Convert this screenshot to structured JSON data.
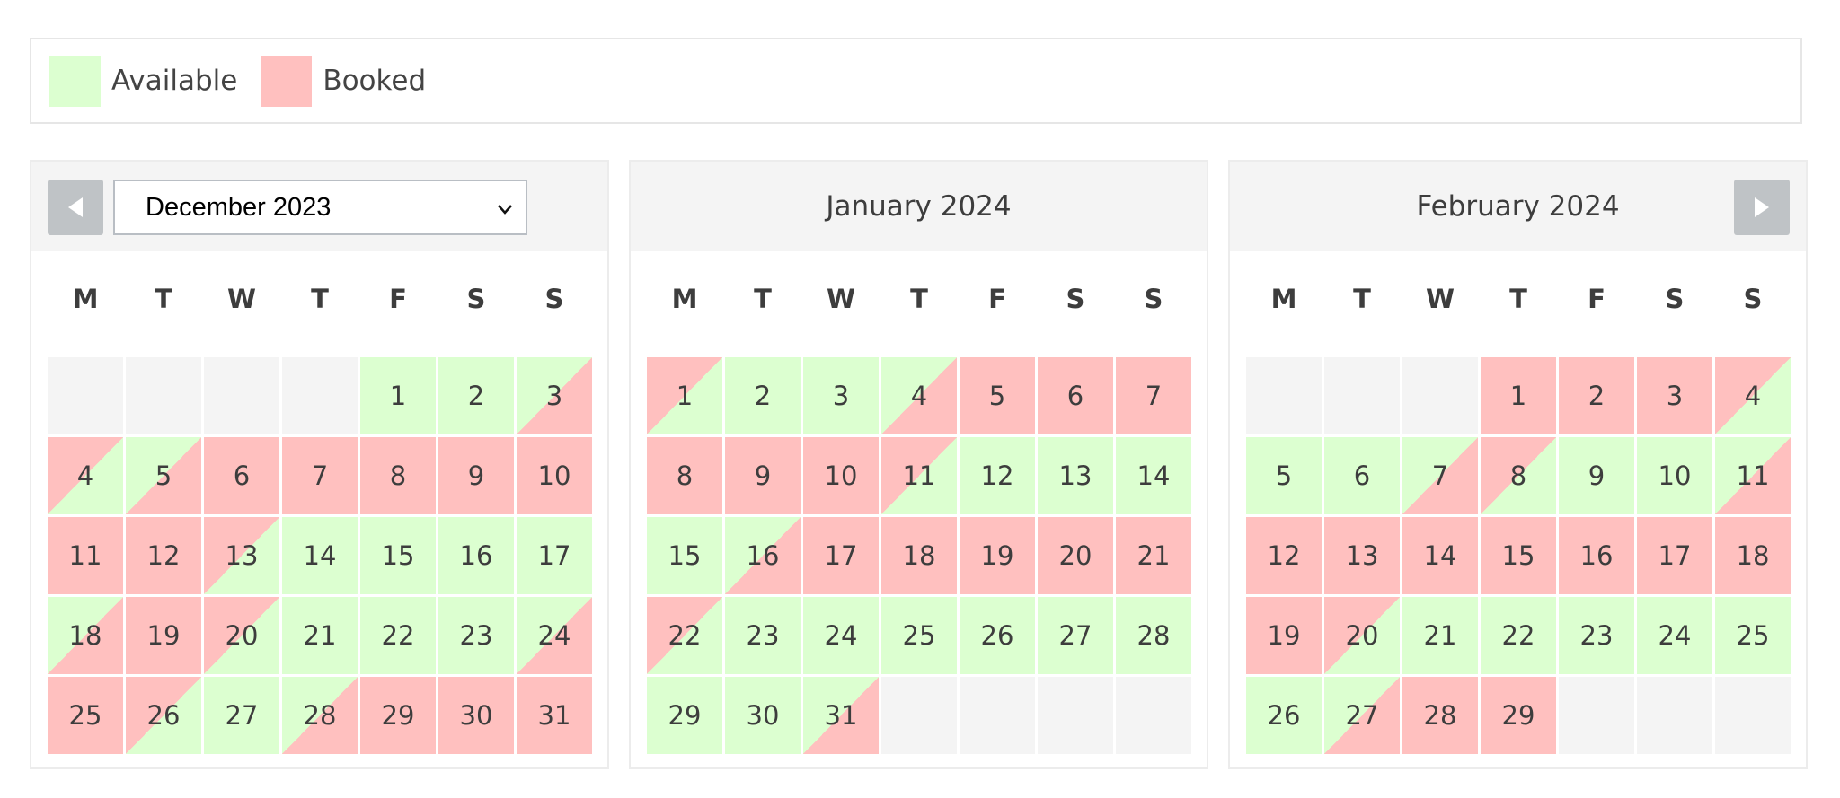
{
  "colors": {
    "available": "#dcffd0",
    "booked": "#ffc0bf",
    "empty": "#f4f4f4"
  },
  "legend": [
    {
      "label": "Available",
      "status": "available"
    },
    {
      "label": "Booked",
      "status": "booked"
    }
  ],
  "nav": {
    "prev_icon": "triangle-left-icon",
    "next_icon": "triangle-right-icon"
  },
  "month_select": {
    "selected": "December 2023"
  },
  "weekdays": [
    "M",
    "T",
    "W",
    "T",
    "F",
    "S",
    "S"
  ],
  "months": [
    {
      "title": "December 2023",
      "days": [
        null,
        null,
        null,
        null,
        {
          "d": "1",
          "s": "A"
        },
        {
          "d": "2",
          "s": "A"
        },
        {
          "d": "3",
          "s": "A/B"
        },
        {
          "d": "4",
          "s": "B/A"
        },
        {
          "d": "5",
          "s": "A/B"
        },
        {
          "d": "6",
          "s": "B"
        },
        {
          "d": "7",
          "s": "B"
        },
        {
          "d": "8",
          "s": "B"
        },
        {
          "d": "9",
          "s": "B"
        },
        {
          "d": "10",
          "s": "B"
        },
        {
          "d": "11",
          "s": "B"
        },
        {
          "d": "12",
          "s": "B"
        },
        {
          "d": "13",
          "s": "B/A"
        },
        {
          "d": "14",
          "s": "A"
        },
        {
          "d": "15",
          "s": "A"
        },
        {
          "d": "16",
          "s": "A"
        },
        {
          "d": "17",
          "s": "A"
        },
        {
          "d": "18",
          "s": "A/B"
        },
        {
          "d": "19",
          "s": "B"
        },
        {
          "d": "20",
          "s": "B/A"
        },
        {
          "d": "21",
          "s": "A"
        },
        {
          "d": "22",
          "s": "A"
        },
        {
          "d": "23",
          "s": "A"
        },
        {
          "d": "24",
          "s": "A/B"
        },
        {
          "d": "25",
          "s": "B"
        },
        {
          "d": "26",
          "s": "B/A"
        },
        {
          "d": "27",
          "s": "A"
        },
        {
          "d": "28",
          "s": "A/B"
        },
        {
          "d": "29",
          "s": "B"
        },
        {
          "d": "30",
          "s": "B"
        },
        {
          "d": "31",
          "s": "B"
        }
      ]
    },
    {
      "title": "January 2024",
      "days": [
        {
          "d": "1",
          "s": "B/A"
        },
        {
          "d": "2",
          "s": "A"
        },
        {
          "d": "3",
          "s": "A"
        },
        {
          "d": "4",
          "s": "A/B"
        },
        {
          "d": "5",
          "s": "B"
        },
        {
          "d": "6",
          "s": "B"
        },
        {
          "d": "7",
          "s": "B"
        },
        {
          "d": "8",
          "s": "B"
        },
        {
          "d": "9",
          "s": "B"
        },
        {
          "d": "10",
          "s": "B"
        },
        {
          "d": "11",
          "s": "B/A"
        },
        {
          "d": "12",
          "s": "A"
        },
        {
          "d": "13",
          "s": "A"
        },
        {
          "d": "14",
          "s": "A"
        },
        {
          "d": "15",
          "s": "A"
        },
        {
          "d": "16",
          "s": "A/B"
        },
        {
          "d": "17",
          "s": "B"
        },
        {
          "d": "18",
          "s": "B"
        },
        {
          "d": "19",
          "s": "B"
        },
        {
          "d": "20",
          "s": "B"
        },
        {
          "d": "21",
          "s": "B"
        },
        {
          "d": "22",
          "s": "B/A"
        },
        {
          "d": "23",
          "s": "A"
        },
        {
          "d": "24",
          "s": "A"
        },
        {
          "d": "25",
          "s": "A"
        },
        {
          "d": "26",
          "s": "A"
        },
        {
          "d": "27",
          "s": "A"
        },
        {
          "d": "28",
          "s": "A"
        },
        {
          "d": "29",
          "s": "A"
        },
        {
          "d": "30",
          "s": "A"
        },
        {
          "d": "31",
          "s": "A/B"
        },
        null,
        null,
        null,
        null
      ]
    },
    {
      "title": "February 2024",
      "days": [
        null,
        null,
        null,
        {
          "d": "1",
          "s": "B"
        },
        {
          "d": "2",
          "s": "B"
        },
        {
          "d": "3",
          "s": "B"
        },
        {
          "d": "4",
          "s": "B/A"
        },
        {
          "d": "5",
          "s": "A"
        },
        {
          "d": "6",
          "s": "A"
        },
        {
          "d": "7",
          "s": "A/B"
        },
        {
          "d": "8",
          "s": "B/A"
        },
        {
          "d": "9",
          "s": "A"
        },
        {
          "d": "10",
          "s": "A"
        },
        {
          "d": "11",
          "s": "A/B"
        },
        {
          "d": "12",
          "s": "B"
        },
        {
          "d": "13",
          "s": "B"
        },
        {
          "d": "14",
          "s": "B"
        },
        {
          "d": "15",
          "s": "B"
        },
        {
          "d": "16",
          "s": "B"
        },
        {
          "d": "17",
          "s": "B"
        },
        {
          "d": "18",
          "s": "B"
        },
        {
          "d": "19",
          "s": "B"
        },
        {
          "d": "20",
          "s": "B/A"
        },
        {
          "d": "21",
          "s": "A"
        },
        {
          "d": "22",
          "s": "A"
        },
        {
          "d": "23",
          "s": "A"
        },
        {
          "d": "24",
          "s": "A"
        },
        {
          "d": "25",
          "s": "A"
        },
        {
          "d": "26",
          "s": "A"
        },
        {
          "d": "27",
          "s": "A/B"
        },
        {
          "d": "28",
          "s": "B"
        },
        {
          "d": "29",
          "s": "B"
        },
        null,
        null,
        null
      ]
    }
  ]
}
